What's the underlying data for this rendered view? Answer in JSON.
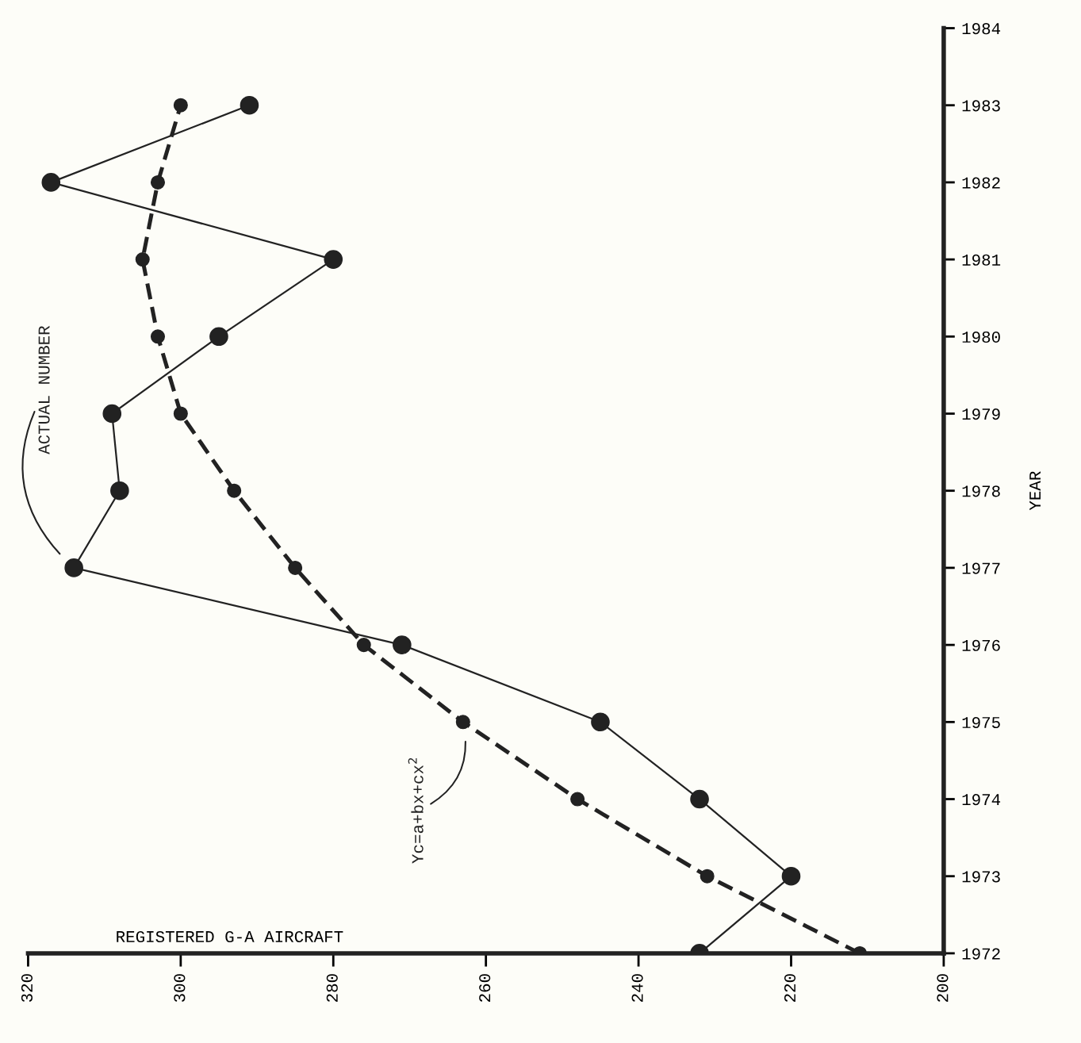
{
  "chart_data": {
    "type": "line",
    "orientation": "horizontal",
    "xlabel": "REGISTERED G-A AIRCRAFT",
    "ylabel": "YEAR",
    "x": [
      1972,
      1973,
      1974,
      1975,
      1976,
      1977,
      1978,
      1979,
      1980,
      1981,
      1982,
      1983
    ],
    "series": [
      {
        "name": "ACTUAL NUMBER",
        "color": "#222222",
        "marker": "circle",
        "line_style": "solid",
        "values": [
          232,
          220,
          232,
          245,
          271,
          314,
          308,
          309,
          295,
          280,
          317,
          291
        ]
      },
      {
        "name": "Yc=a+bx+cx$^{2}$",
        "color": "#222222",
        "marker": "circle",
        "line_style": "dashed",
        "values": [
          211,
          231,
          248,
          263,
          276,
          285,
          293,
          300,
          303,
          305,
          303,
          300
        ]
      }
    ],
    "xlim": [
      320,
      200
    ],
    "xticks": [
      320,
      300,
      280,
      260,
      240,
      220,
      200
    ],
    "ylim": [
      1972,
      1984
    ],
    "yticks": [
      1972,
      1973,
      1974,
      1975,
      1976,
      1977,
      1978,
      1979,
      1980,
      1981,
      1982,
      1983,
      1984
    ],
    "grid": false,
    "legend": false
  }
}
